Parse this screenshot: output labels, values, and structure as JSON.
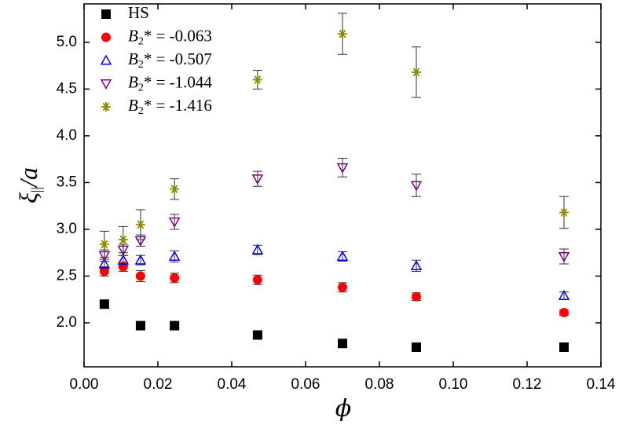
{
  "chart_data": {
    "type": "scatter",
    "x_label": "ϕ",
    "y_label": "ξ||/a",
    "xlim": [
      0,
      0.14
    ],
    "xticks": [
      {
        "value": 0,
        "label": "0.00"
      },
      0.02,
      0.04,
      0.06,
      0.08,
      {
        "value": 0.1,
        "label": "0.10"
      },
      0.12,
      0.14
    ],
    "ylim": [
      1.53,
      5.41
    ],
    "yticks": [
      {
        "value": 2,
        "label": "2.0"
      },
      2.5,
      {
        "value": 3,
        "label": "3.0"
      },
      3.5,
      {
        "value": 4,
        "label": "4.0"
      },
      4.5,
      {
        "value": 5,
        "label": "5.0"
      }
    ],
    "x": [
      0.0055,
      0.0106,
      0.0153,
      0.0245,
      0.047,
      0.07,
      0.09,
      0.13
    ],
    "legend": "upper left",
    "series": [
      {
        "name": "HS",
        "color": "#000000",
        "marker": "square",
        "values": [
          2.2,
          null,
          1.97,
          1.97,
          1.87,
          1.78,
          1.74,
          1.74
        ],
        "errors": [
          0.03,
          null,
          0.03,
          0.03,
          0.03,
          0.03,
          0.03,
          0.03
        ]
      },
      {
        "name": "B2* = -0.063",
        "color": "#ff0000",
        "marker": "circle",
        "values": [
          2.55,
          2.6,
          2.5,
          2.48,
          2.46,
          2.38,
          2.28,
          2.11
        ],
        "errors": [
          0.05,
          0.05,
          0.06,
          0.05,
          0.05,
          0.05,
          0.04,
          0.03
        ]
      },
      {
        "name": "B2* = -0.507",
        "color": "#0000ff",
        "marker": "triangle-up",
        "values": [
          2.63,
          2.67,
          2.67,
          2.71,
          2.78,
          2.71,
          2.61,
          2.29
        ],
        "errors": [
          0.05,
          0.05,
          0.05,
          0.06,
          0.05,
          0.05,
          0.06,
          0.04
        ]
      },
      {
        "name": "B2* = -1.044",
        "color": "#800080",
        "marker": "triangle-down",
        "values": [
          2.72,
          2.78,
          2.88,
          3.08,
          3.54,
          3.66,
          3.47,
          2.71
        ],
        "errors": [
          0.06,
          0.06,
          0.06,
          0.08,
          0.08,
          0.1,
          0.12,
          0.08
        ]
      },
      {
        "name": "B2* = -1.416",
        "color": "#8b8b00",
        "marker": "asterisk",
        "values": [
          2.84,
          2.89,
          3.05,
          3.43,
          4.6,
          5.09,
          4.68,
          3.18
        ],
        "errors": [
          0.14,
          0.14,
          0.16,
          0.11,
          0.1,
          0.22,
          0.27,
          0.17
        ]
      }
    ]
  }
}
